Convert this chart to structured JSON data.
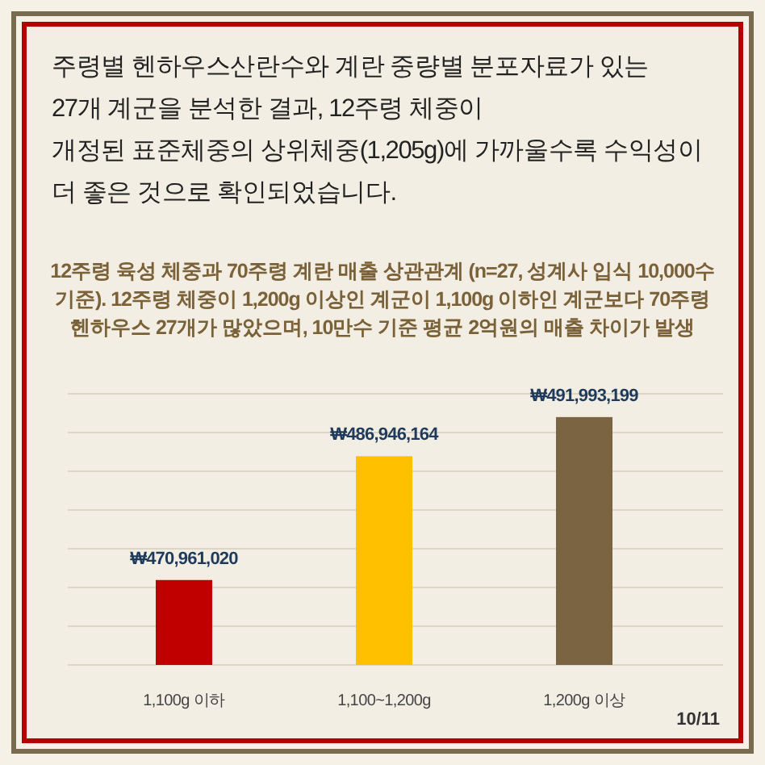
{
  "chart_data": {
    "type": "bar",
    "title": "주령별 헨하우스산란수와 계란 중량별 분포자료가 있는\n27개 계군을 분석한 결과, 12주령 체중이\n개정된 표준체중의 상위체중(1,205g)에 가까울수록 수익성이\n더 좋은 것으로 확인되었습니다.",
    "subtitle": "12주령 육성 체중과 70주령 계란 매출 상관관계 (n=27, 성계사 입식 10,000수\n기준). 12주령 체중이 1,200g 이상인 계군이 1,100g 이하인 계군보다 70주령\n헨하우스 27개가 많았으며, 10만수 기준 평균 2억원의 매출 차이가 발생",
    "categories": [
      "1,100g 이하",
      "1,100~1,200g",
      "1,200g 이상"
    ],
    "values": [
      470961020,
      486946164,
      491993199
    ],
    "colors": [
      "#c00000",
      "#ffc000",
      "#7a6441"
    ],
    "value_labels": [
      "₩470,961,020",
      "₩486,946,164",
      "₩491,993,199"
    ],
    "ylim": [
      460000000,
      495000000
    ],
    "yticks": [
      {
        "value": 460000000,
        "label": null
      },
      {
        "value": 465000000,
        "label": null
      },
      {
        "value": 470000000,
        "label": null
      },
      {
        "value": 475000000,
        "label": null
      },
      {
        "value": 480000000,
        "label": null
      },
      {
        "value": 485000000,
        "label": null
      },
      {
        "value": 490000000,
        "label": null
      },
      {
        "value": 495000000,
        "label": null
      }
    ],
    "grid": "y",
    "tick_labels": "x",
    "annotations": [
      "10/11"
    ]
  }
}
